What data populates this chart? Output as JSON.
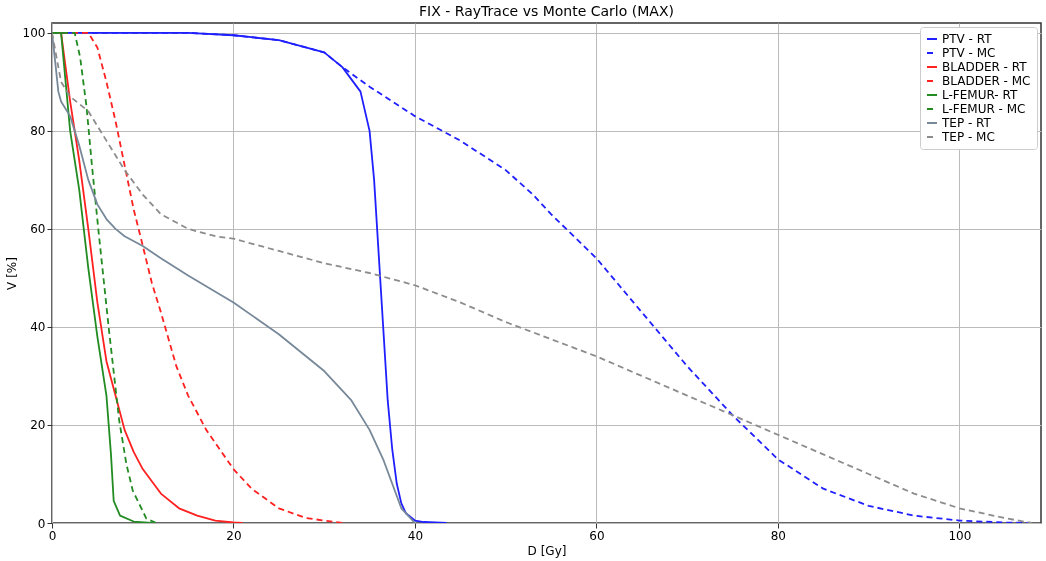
{
  "chart_data": {
    "type": "line",
    "title": "FIX - RayTrace vs Monte Carlo (MAX)",
    "xlabel": "D [Gy]",
    "ylabel": "V [%]",
    "xlim": [
      0,
      109
    ],
    "ylim": [
      0,
      102
    ],
    "xticks": [
      0,
      20,
      40,
      60,
      80,
      100
    ],
    "yticks": [
      0,
      20,
      40,
      60,
      80,
      100
    ],
    "grid": true,
    "legend": "top right",
    "marker": "none",
    "series": [
      {
        "name": "PTV - RT",
        "color": "#1f1fff",
        "line_style": "solid",
        "x": [
          0,
          15,
          20,
          25,
          30,
          32,
          34,
          35,
          35.5,
          36,
          36.5,
          37,
          37.5,
          38,
          38.5,
          39,
          40,
          41,
          43.5
        ],
        "values": [
          100,
          100,
          99.5,
          98.5,
          96,
          93,
          88,
          80,
          70,
          55,
          40,
          25,
          15,
          8,
          4,
          2,
          0.5,
          0.2,
          0
        ]
      },
      {
        "name": "PTV - MC",
        "color": "#1f1fff",
        "line_style": "dashed",
        "x": [
          0,
          15,
          20,
          25,
          30,
          32,
          35,
          40,
          45,
          50,
          53,
          55,
          60,
          65,
          70,
          75,
          80,
          85,
          90,
          95,
          100,
          105,
          108
        ],
        "values": [
          100,
          100,
          99.5,
          98.5,
          96,
          93,
          89,
          83,
          78,
          72,
          67,
          63,
          54,
          43,
          32,
          22,
          13,
          7,
          3.5,
          1.5,
          0.5,
          0.1,
          0
        ]
      },
      {
        "name": "BLADDER - RT",
        "color": "#ff2020",
        "line_style": "solid",
        "x": [
          0,
          1,
          2,
          3,
          4,
          5,
          6,
          7,
          8,
          9,
          10,
          12,
          14,
          16,
          18,
          20,
          21
        ],
        "values": [
          100,
          100,
          86,
          74,
          60,
          45,
          33,
          26,
          19,
          14.5,
          11,
          6,
          3,
          1.5,
          0.5,
          0.1,
          0
        ]
      },
      {
        "name": "BLADDER - MC",
        "color": "#ff2020",
        "line_style": "dashed",
        "x": [
          0,
          4,
          5,
          6,
          7,
          8,
          9,
          10,
          11,
          12,
          13.7,
          15,
          17,
          20,
          22,
          25,
          28,
          32
        ],
        "values": [
          100,
          100,
          97,
          90,
          82,
          73,
          64,
          56.6,
          49,
          43,
          32,
          26,
          19,
          11,
          7,
          3,
          1,
          0
        ]
      },
      {
        "name": "L-FEMUR- RT",
        "color": "#228b22",
        "line_style": "solid",
        "x": [
          0,
          1,
          2,
          3,
          4,
          5,
          6,
          6.5,
          6.8,
          7.5,
          9,
          11
        ],
        "values": [
          100,
          100,
          80,
          68,
          52,
          38,
          26,
          14,
          4.5,
          1.5,
          0.3,
          0
        ]
      },
      {
        "name": "L-FEMUR - MC",
        "color": "#228b22",
        "line_style": "dashed",
        "x": [
          0,
          2.5,
          3.1,
          3.8,
          4.4,
          5.1,
          6.3,
          7.4,
          8.2,
          8.9,
          10.4,
          11.5
        ],
        "values": [
          100,
          100,
          95,
          85,
          73,
          60,
          39,
          21,
          12,
          6.6,
          0.9,
          0
        ]
      },
      {
        "name": "TEP - RT",
        "color": "#778899",
        "line_style": "solid",
        "x": [
          0,
          0.3,
          0.7,
          1,
          2,
          3,
          4,
          5,
          6,
          7,
          8,
          10,
          12,
          15,
          20,
          25,
          30,
          33,
          35,
          36.5,
          37.5,
          38.5,
          39.5,
          40
        ],
        "values": [
          100,
          95,
          88,
          86,
          83,
          77,
          70,
          65,
          62,
          60,
          58.5,
          56.5,
          54,
          50.5,
          45,
          38.5,
          31,
          25,
          19,
          13,
          8,
          3,
          1,
          0
        ]
      },
      {
        "name": "TEP - MC",
        "color": "#8c8c8c",
        "line_style": "dashed",
        "x": [
          0,
          0.5,
          1,
          2,
          4,
          6,
          8,
          10,
          12,
          15,
          18,
          20,
          25,
          30,
          35,
          40,
          45,
          50,
          55,
          60,
          65,
          70,
          75,
          80,
          85,
          90,
          95,
          100,
          105,
          108
        ],
        "values": [
          100,
          95,
          90,
          87,
          84,
          78,
          72,
          67,
          63,
          60,
          58.5,
          58,
          55.5,
          53,
          51,
          48.5,
          45,
          41,
          37.5,
          34,
          30,
          26,
          22,
          18,
          14,
          10,
          6,
          3,
          1,
          0
        ]
      }
    ]
  }
}
